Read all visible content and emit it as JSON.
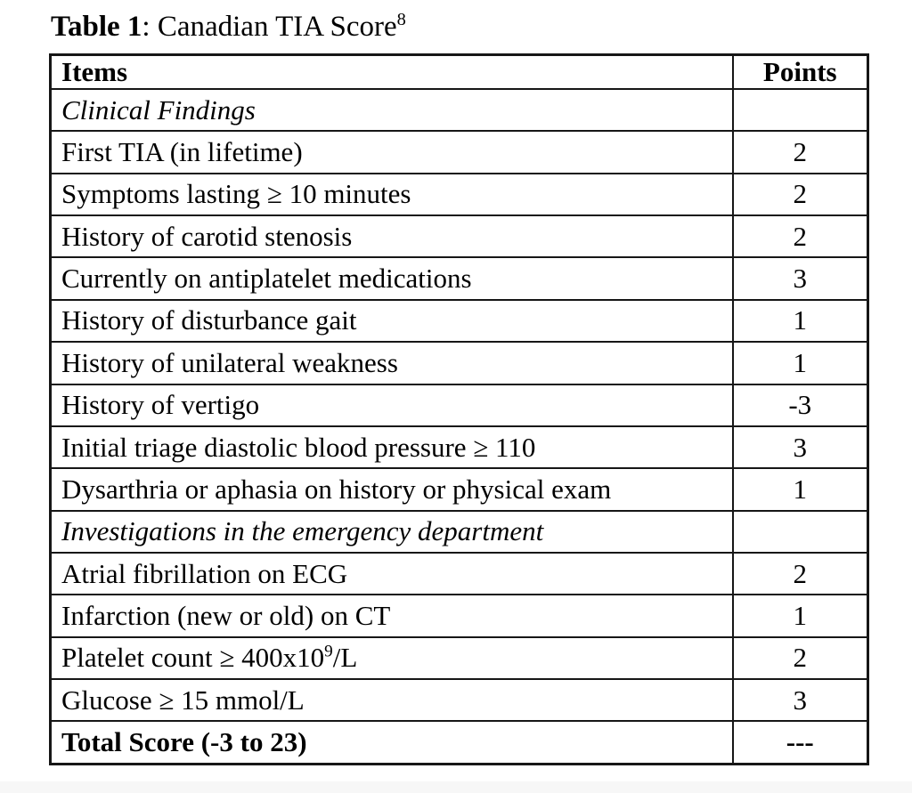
{
  "page": {
    "background_color": "#ffffff",
    "border_color": "#161616",
    "bottom_strip_color": "#f7f7f7"
  },
  "title": {
    "label_bold": "Table 1",
    "label_rest": ": Canadian TIA Score",
    "reference_superscript": "8"
  },
  "table": {
    "columns": [
      {
        "label": "Items"
      },
      {
        "label": "Points"
      }
    ],
    "rows": [
      {
        "style": "section",
        "item": "Clinical Findings",
        "points": ""
      },
      {
        "style": "item",
        "item": "First TIA (in lifetime)",
        "points": "2"
      },
      {
        "style": "item",
        "item": "Symptoms lasting ≥ 10 minutes",
        "points": "2"
      },
      {
        "style": "item",
        "item": "History of carotid stenosis",
        "points": "2"
      },
      {
        "style": "item",
        "item": "Currently on antiplatelet medications",
        "points": "3"
      },
      {
        "style": "item",
        "item": "History of disturbance gait",
        "points": "1"
      },
      {
        "style": "item",
        "item": "History of unilateral weakness",
        "points": "1"
      },
      {
        "style": "item",
        "item": "History of vertigo",
        "points": "-3"
      },
      {
        "style": "item",
        "item": "Initial triage diastolic blood pressure ≥ 110",
        "points": "3"
      },
      {
        "style": "item",
        "item": "Dysarthria or aphasia on history or physical exam",
        "points": "1"
      },
      {
        "style": "section",
        "item": "Investigations in the emergency department",
        "points": ""
      },
      {
        "style": "item",
        "item": "Atrial fibrillation on ECG",
        "points": "2"
      },
      {
        "style": "item",
        "item": "Infarction (new or old) on CT",
        "points": "1"
      },
      {
        "style": "item",
        "item": "Platelet count ≥ 400x10^{9}/L",
        "points": "2"
      },
      {
        "style": "item",
        "item": "Glucose ≥ 15 mmol/L",
        "points": "3"
      },
      {
        "style": "total",
        "item": "Total Score (-3 to 23)",
        "points": "---"
      }
    ],
    "total_score_range": "-3 to 23"
  }
}
